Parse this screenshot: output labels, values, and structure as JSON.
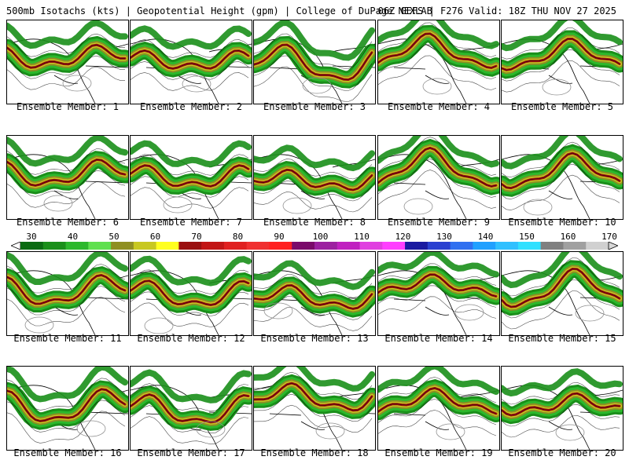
{
  "header": {
    "left": "500mb Isotachs (kts) | Geopotential Height (gpm) | College of DuPage NEXLAB",
    "right": "06Z GEFS | F276 Valid: 18Z THU NOV 27 2025"
  },
  "colorbar": {
    "labels": [
      "30",
      "40",
      "50",
      "60",
      "70",
      "80",
      "90",
      "100",
      "110",
      "120",
      "130",
      "140",
      "150",
      "160",
      "170"
    ],
    "colors": [
      "#0b6b12",
      "#1a8f1a",
      "#2cb82c",
      "#5fe04f",
      "#8f8f22",
      "#c8c820",
      "#ffff20",
      "#9a1010",
      "#c21515",
      "#e02020",
      "#f03030",
      "#ff2020",
      "#7a0a6a",
      "#9c20a0",
      "#c020c0",
      "#e040e0",
      "#ff40ff",
      "#1a1aa0",
      "#2a40d0",
      "#3070f0",
      "#20a0ff",
      "#30c0ff",
      "#30e0ff",
      "#808080",
      "#a0a0a0",
      "#d0d0d0"
    ]
  },
  "members": [
    {
      "label": "Ensemble Member: 1"
    },
    {
      "label": "Ensemble Member: 2"
    },
    {
      "label": "Ensemble Member: 3"
    },
    {
      "label": "Ensemble Member: 4"
    },
    {
      "label": "Ensemble Member: 5"
    },
    {
      "label": "Ensemble Member: 6"
    },
    {
      "label": "Ensemble Member: 7"
    },
    {
      "label": "Ensemble Member: 8"
    },
    {
      "label": "Ensemble Member: 9"
    },
    {
      "label": "Ensemble Member: 10"
    },
    {
      "label": "Ensemble Member: 11"
    },
    {
      "label": "Ensemble Member: 12"
    },
    {
      "label": "Ensemble Member: 13"
    },
    {
      "label": "Ensemble Member: 14"
    },
    {
      "label": "Ensemble Member: 15"
    },
    {
      "label": "Ensemble Member: 16"
    },
    {
      "label": "Ensemble Member: 17"
    },
    {
      "label": "Ensemble Member: 18"
    },
    {
      "label": "Ensemble Member: 19"
    },
    {
      "label": "Ensemble Member: 20"
    }
  ]
}
